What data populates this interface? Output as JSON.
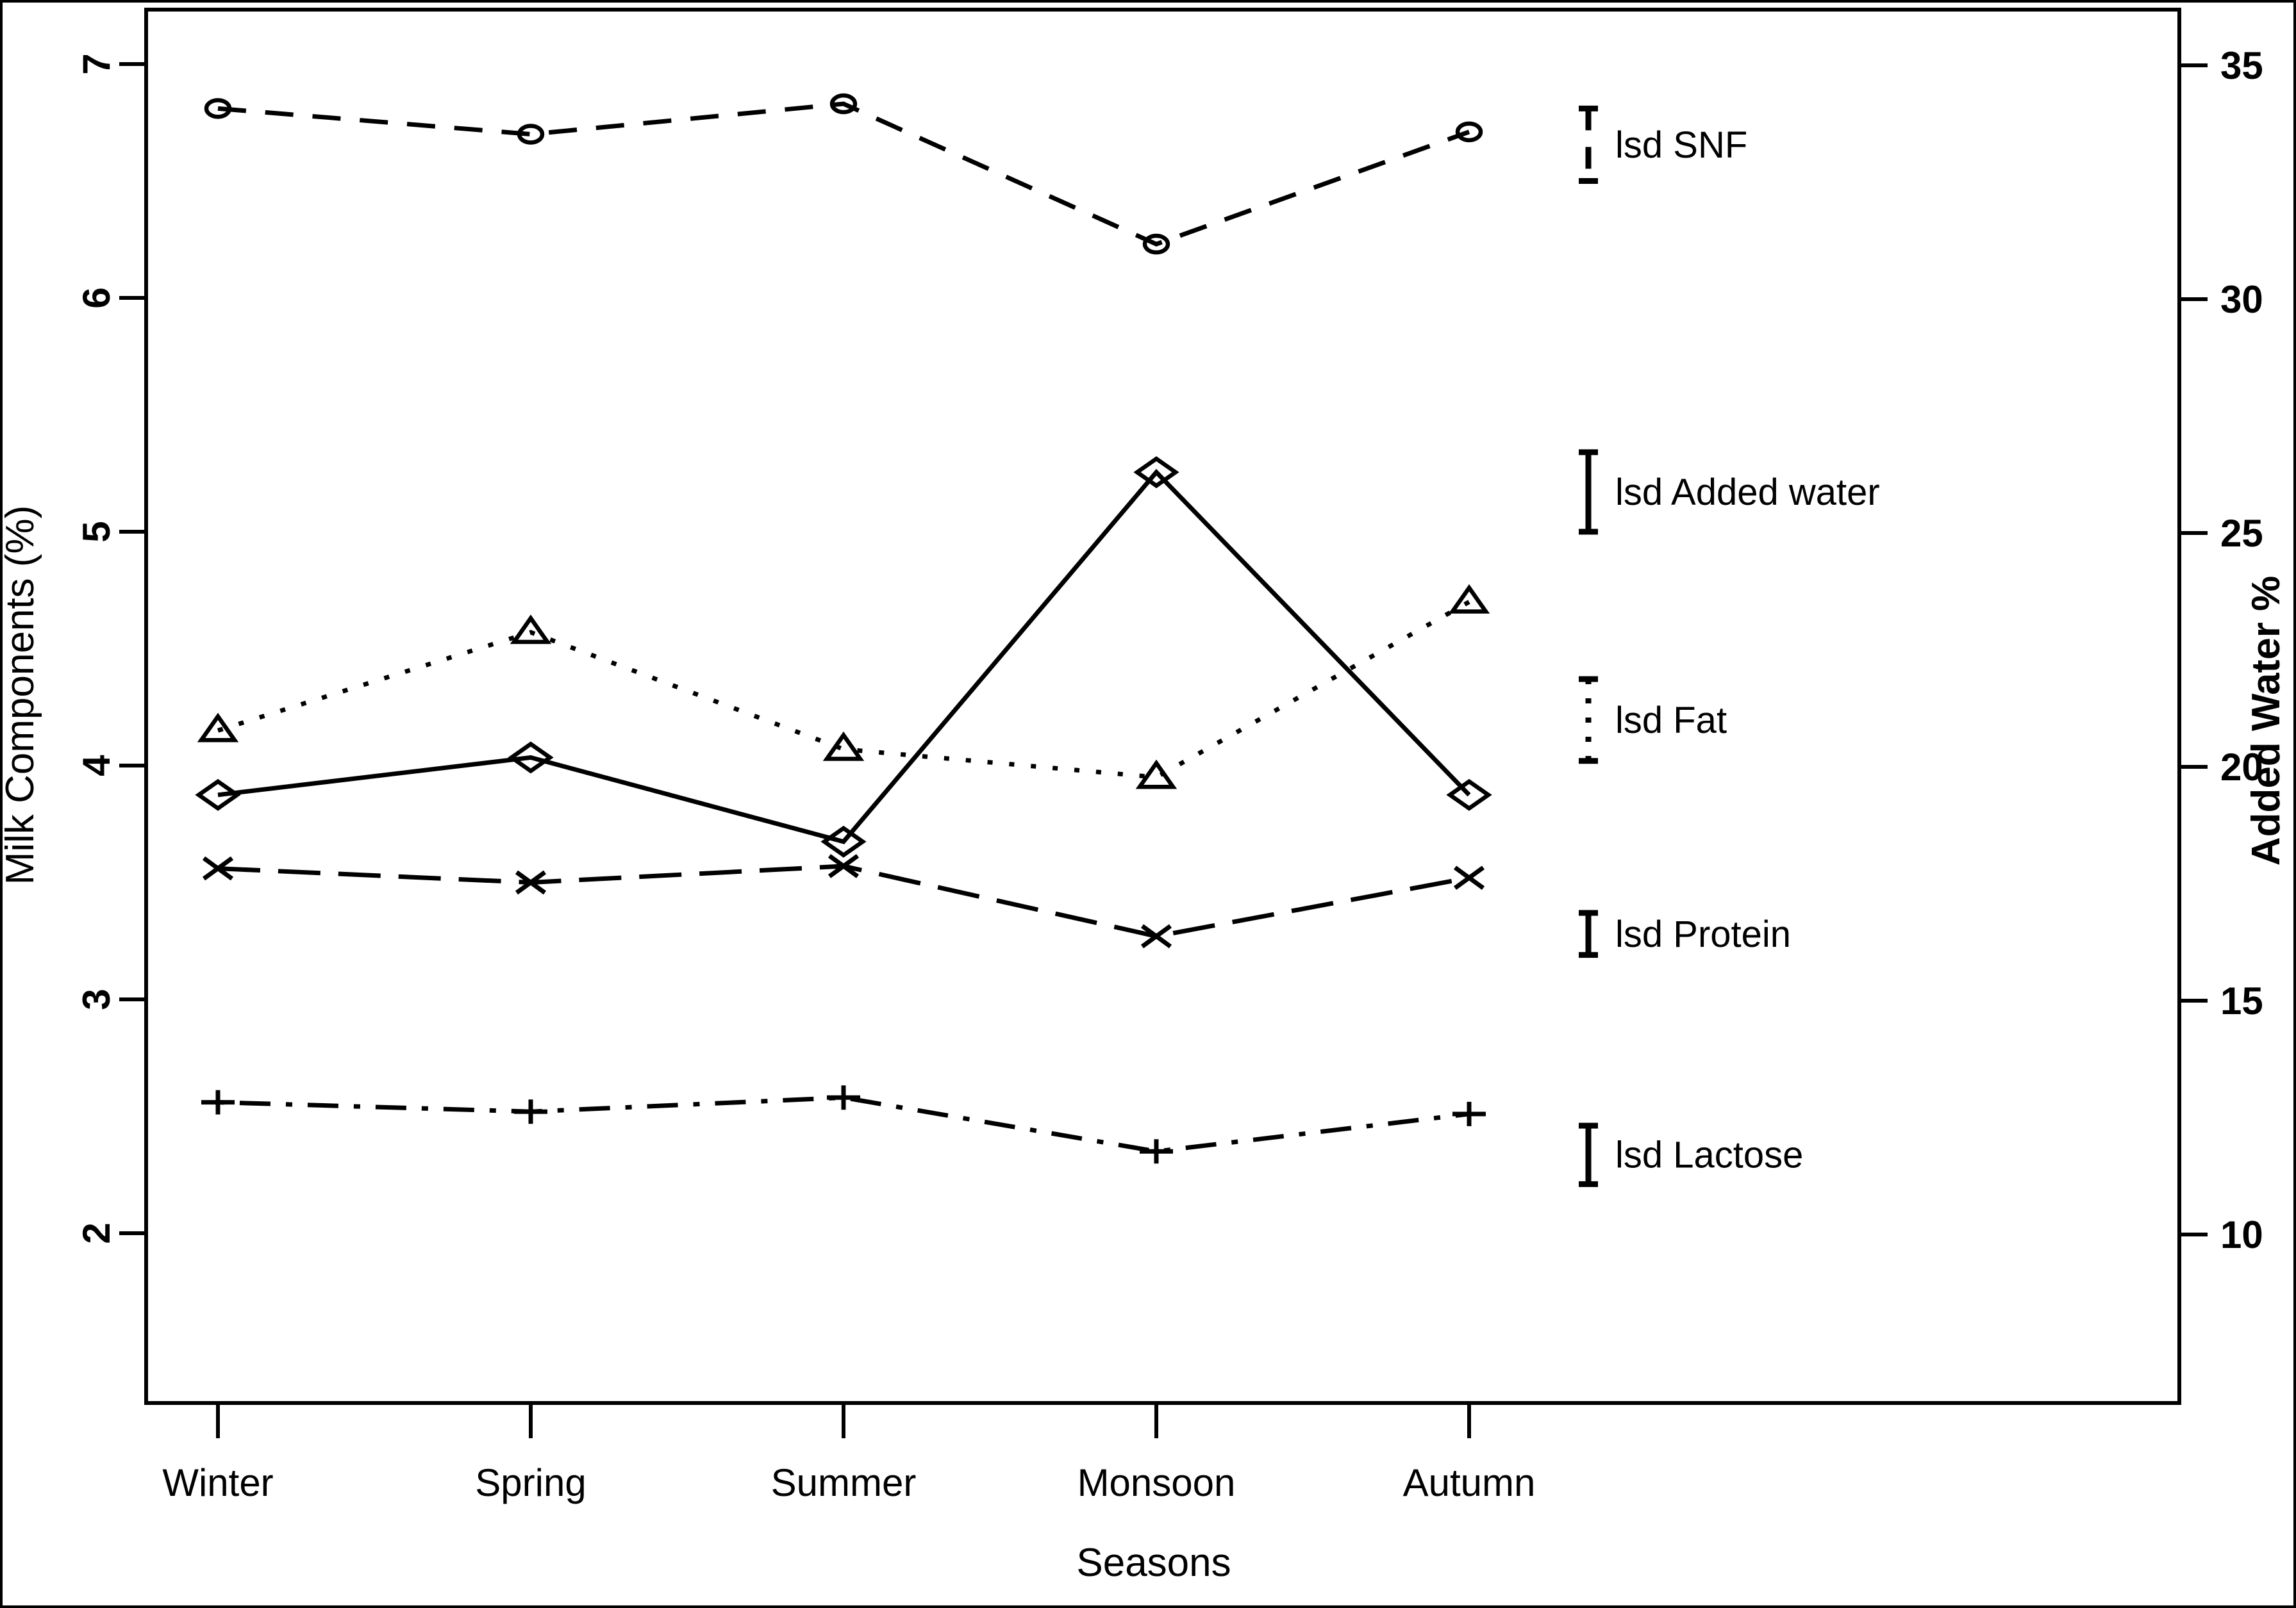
{
  "chart_data": {
    "type": "line",
    "title": "",
    "xlabel": "Seasons",
    "ylabel_left": "Milk Components (%)",
    "ylabel_right": "Added Water %",
    "categories": [
      "Winter",
      "Spring",
      "Summer",
      "Monsoon",
      "Autumn"
    ],
    "left_axis": {
      "range": [
        2,
        7
      ],
      "ticks": [
        7,
        6,
        5,
        4,
        3,
        2
      ]
    },
    "right_axis": {
      "range": [
        10,
        35
      ],
      "ticks": [
        35,
        30,
        25,
        20,
        15,
        10
      ]
    },
    "grid": false,
    "legend_position": "right-inside",
    "series": [
      {
        "name": "SNF",
        "axis": "left",
        "marker": "circle",
        "linestyle": "dashed",
        "values": [
          6.81,
          6.7,
          6.83,
          6.23,
          6.71
        ]
      },
      {
        "name": "Added water",
        "axis": "right",
        "marker": "diamond",
        "linestyle": "solid",
        "values": [
          19.4,
          20.2,
          18.4,
          26.3,
          19.4
        ]
      },
      {
        "name": "Fat",
        "axis": "left",
        "marker": "triangle",
        "linestyle": "dotted",
        "values": [
          4.15,
          4.57,
          4.07,
          3.95,
          4.7
        ]
      },
      {
        "name": "Protein",
        "axis": "left",
        "marker": "x",
        "linestyle": "longdash",
        "values": [
          3.56,
          3.5,
          3.57,
          3.27,
          3.52
        ]
      },
      {
        "name": "Lactose",
        "axis": "left",
        "marker": "plus",
        "linestyle": "dashdot",
        "values": [
          2.56,
          2.52,
          2.58,
          2.35,
          2.51
        ]
      }
    ],
    "legend": [
      {
        "label": "lsd SNF",
        "style": "dashed",
        "bar_range_left_axis": [
          6.81,
          6.5
        ]
      },
      {
        "label": "lsd Added water",
        "style": "solid",
        "bar_range_left_axis": [
          5.34,
          5.0
        ]
      },
      {
        "label": "lsd Fat",
        "style": "dotted",
        "bar_range_left_axis": [
          4.37,
          4.02
        ]
      },
      {
        "label": "lsd Protein",
        "style": "solid",
        "bar_range_left_axis": [
          3.37,
          3.19
        ]
      },
      {
        "label": "lsd Lactose",
        "style": "solid",
        "bar_range_left_axis": [
          2.46,
          2.21
        ]
      }
    ],
    "colors": {
      "foreground": "#000000",
      "background": "#ffffff"
    }
  }
}
